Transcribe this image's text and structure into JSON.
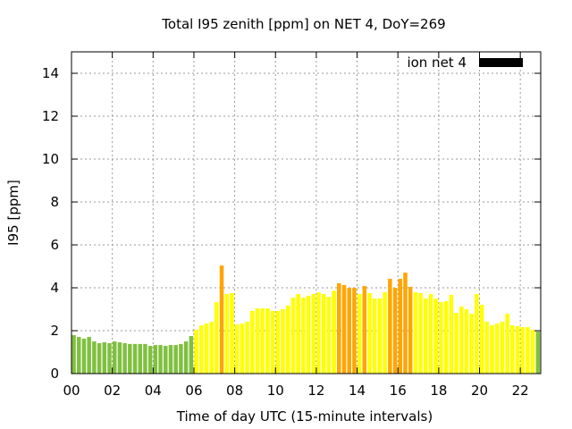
{
  "chart_data": {
    "type": "bar",
    "title": "Total I95 zenith [ppm] on NET 4, DoY=269",
    "xlabel": "Time of day UTC (15-minute intervals)",
    "ylabel": "I95 [ppm]",
    "ylim": [
      0,
      15
    ],
    "xlim_hours": [
      0,
      23
    ],
    "bar_interval_hours": 0.25,
    "grid": true,
    "legend": {
      "label": "ion net 4",
      "color": "#000000",
      "placement": "top-right"
    },
    "yticks": [
      "0",
      "2",
      "4",
      "6",
      "8",
      "10",
      "12",
      "14"
    ],
    "xticks": [
      "00",
      "02",
      "04",
      "06",
      "08",
      "10",
      "12",
      "14",
      "16",
      "18",
      "20",
      "22"
    ],
    "color_scale": [
      {
        "below": 2,
        "color": "#80c040"
      },
      {
        "below": 4,
        "color": "#ffff00"
      },
      {
        "below": 100,
        "color": "#ffa500"
      }
    ],
    "values": [
      1.79,
      1.71,
      1.63,
      1.71,
      1.5,
      1.42,
      1.46,
      1.42,
      1.5,
      1.46,
      1.42,
      1.38,
      1.38,
      1.38,
      1.38,
      1.29,
      1.33,
      1.33,
      1.29,
      1.33,
      1.33,
      1.38,
      1.5,
      1.75,
      2.04,
      2.25,
      2.33,
      2.42,
      3.33,
      5.04,
      3.71,
      3.75,
      2.29,
      2.33,
      2.42,
      2.92,
      3.04,
      3.04,
      3.04,
      2.92,
      2.92,
      3.0,
      3.17,
      3.54,
      3.71,
      3.54,
      3.63,
      3.71,
      3.79,
      3.71,
      3.58,
      3.86,
      4.21,
      4.13,
      4.0,
      4.0,
      3.71,
      4.08,
      3.75,
      3.5,
      3.5,
      3.79,
      4.42,
      4.0,
      4.42,
      4.71,
      4.04,
      3.79,
      3.75,
      3.5,
      3.71,
      3.5,
      3.33,
      3.38,
      3.67,
      2.83,
      3.13,
      3.0,
      2.79,
      3.71,
      3.21,
      2.42,
      2.25,
      2.33,
      2.42,
      2.79,
      2.25,
      2.21,
      2.17,
      2.17,
      2.04,
      1.96
    ]
  }
}
